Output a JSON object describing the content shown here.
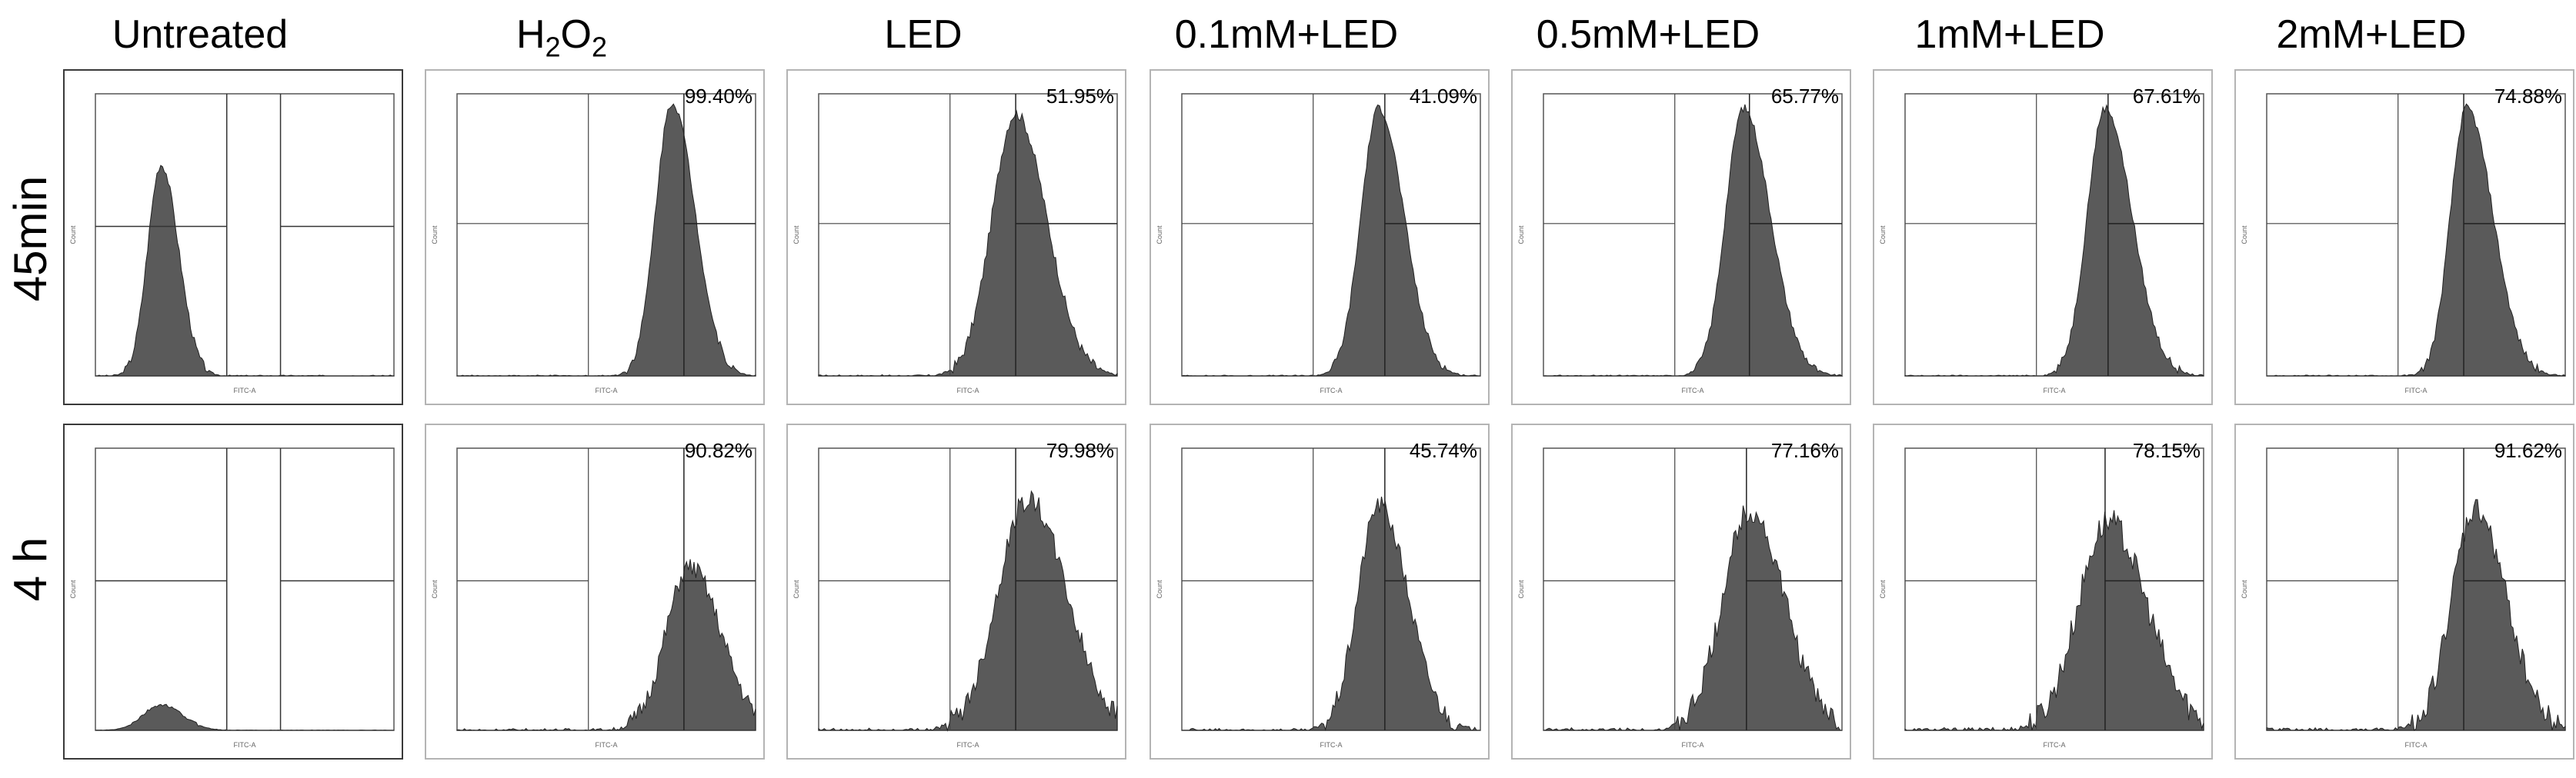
{
  "chart_data": {
    "type": "area",
    "columns": [
      "Untreated",
      "H2O2",
      "LED",
      "0.1mM+LED",
      "0.5mM+LED",
      "1mM+LED",
      "2mM+LED"
    ],
    "rows": [
      "45min",
      "4 h"
    ],
    "axis_label_x": "FITC-A",
    "axis_label_y": "Count",
    "percentages": {
      "45min": [
        "",
        "99.40%",
        "51.95%",
        "41.09%",
        "65.77%",
        "67.61%",
        "74.88%"
      ],
      "4 h": [
        "",
        "90.82%",
        "79.98%",
        "45.74%",
        "77.16%",
        "78.15%",
        "91.62%"
      ]
    }
  },
  "headers": {
    "untreated": "Untreated",
    "h2o2_main": "H",
    "h2o2_sub": "2",
    "h2o2_tail": "O",
    "h2o2_sub2": "2",
    "led": "LED",
    "c01": "0.1mM+LED",
    "c05": "0.5mM+LED",
    "c1": "1mM+LED",
    "c2": "2mM+LED"
  },
  "row_labels": {
    "r1": "45min",
    "r2": "4 h"
  }
}
